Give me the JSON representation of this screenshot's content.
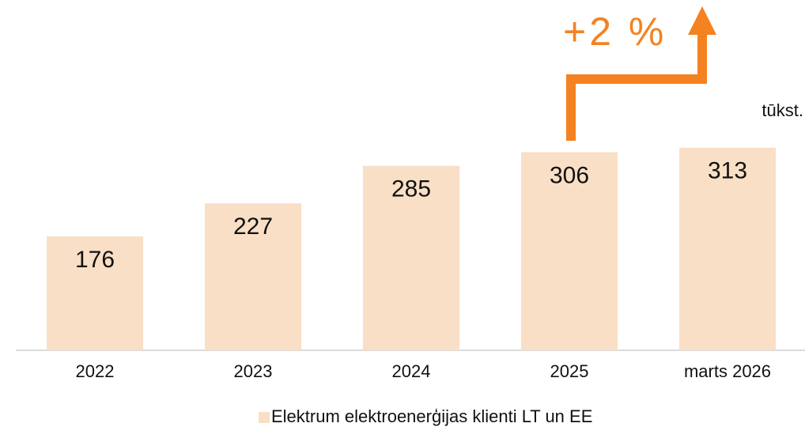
{
  "chart_data": {
    "type": "bar",
    "categories": [
      "2022",
      "2023",
      "2024",
      "2025",
      "marts 2026"
    ],
    "series": [
      {
        "name": "Elektrum elektroenerģijas klienti LT un EE",
        "color": "#f9dfc6",
        "values": [
          176,
          227,
          285,
          306,
          313
        ]
      }
    ],
    "ylim": [
      0,
      540
    ],
    "unit_label": "tūkst.",
    "annotation": "+2 %",
    "annotation_color": "#f58220",
    "legend": "bottom"
  }
}
